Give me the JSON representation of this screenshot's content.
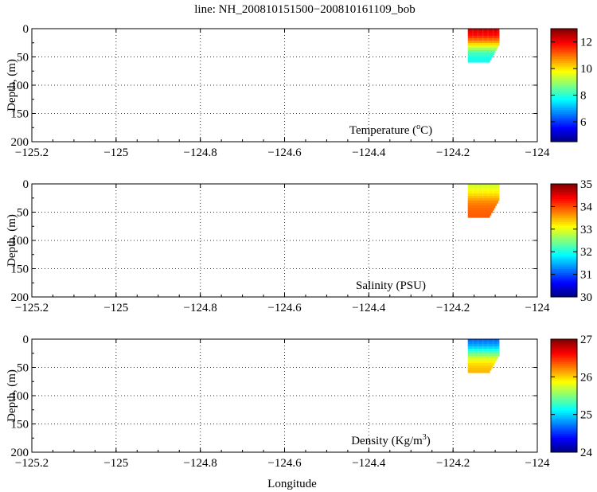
{
  "title": "line: NH_200810151500−200810161109_bob",
  "xlabel": "Longitude",
  "ylabel": "Depth, (m)",
  "xticks": [
    "−125.2",
    "−125",
    "−124.8",
    "−124.6",
    "−124.4",
    "−124.2",
    "−124"
  ],
  "yticks": [
    "0",
    "50",
    "100",
    "150",
    "200"
  ],
  "chart_data": [
    {
      "type": "heatmap",
      "panel_label": "Temperature (°C)",
      "label_base": "Temperature (",
      "label_sup": "o",
      "label_tail": "C)",
      "xlim": [
        -125.2,
        -124.0
      ],
      "ylim": [
        200,
        0
      ],
      "xticks": [
        -125.2,
        -125.0,
        -124.8,
        -124.6,
        -124.4,
        -124.2,
        -124.0
      ],
      "yticks": [
        0,
        50,
        100,
        150,
        200
      ],
      "grid": true,
      "colorbar": {
        "min": 4.5,
        "max": 13,
        "ticks": [
          6,
          8,
          10,
          12
        ],
        "colormap": "jet"
      },
      "data_extent": {
        "lon": [
          -124.165,
          -124.09
        ],
        "depth": [
          0,
          58
        ]
      },
      "profile_values": {
        "depth": [
          0,
          10,
          20,
          30,
          40,
          50,
          58
        ],
        "value": [
          12.3,
          11.8,
          10.8,
          9.5,
          8.3,
          7.9,
          7.8
        ]
      }
    },
    {
      "type": "heatmap",
      "panel_label": "Salinity (PSU)",
      "label_base": "Salinity (PSU)",
      "label_sup": "",
      "label_tail": "",
      "xlim": [
        -125.2,
        -124.0
      ],
      "ylim": [
        200,
        0
      ],
      "xticks": [
        -125.2,
        -125.0,
        -124.8,
        -124.6,
        -124.4,
        -124.2,
        -124.0
      ],
      "yticks": [
        0,
        50,
        100,
        150,
        200
      ],
      "grid": true,
      "colorbar": {
        "min": 30,
        "max": 35,
        "ticks": [
          30,
          31,
          32,
          33,
          34,
          35
        ],
        "colormap": "jet"
      },
      "data_extent": {
        "lon": [
          -124.165,
          -124.09
        ],
        "depth": [
          0,
          58
        ]
      },
      "profile_values": {
        "depth": [
          0,
          10,
          20,
          30,
          40,
          50,
          58
        ],
        "value": [
          32.9,
          33.1,
          33.4,
          33.7,
          33.85,
          33.9,
          33.95
        ]
      }
    },
    {
      "type": "heatmap",
      "panel_label": "Density (Kg/m³)",
      "label_base": "Density (Kg/m",
      "label_sup": "3",
      "label_tail": ")",
      "xlim": [
        -125.2,
        -124.0
      ],
      "ylim": [
        200,
        0
      ],
      "xticks": [
        -125.2,
        -125.0,
        -124.8,
        -124.6,
        -124.4,
        -124.2,
        -124.0
      ],
      "yticks": [
        0,
        50,
        100,
        150,
        200
      ],
      "grid": true,
      "colorbar": {
        "min": 24,
        "max": 27,
        "ticks": [
          24,
          25,
          26,
          27
        ],
        "colormap": "jet"
      },
      "data_extent": {
        "lon": [
          -124.165,
          -124.09
        ],
        "depth": [
          0,
          58
        ]
      },
      "profile_values": {
        "depth": [
          0,
          10,
          20,
          30,
          40,
          50,
          58
        ],
        "value": [
          24.7,
          24.9,
          25.3,
          25.7,
          25.95,
          26.05,
          26.1
        ]
      }
    }
  ]
}
